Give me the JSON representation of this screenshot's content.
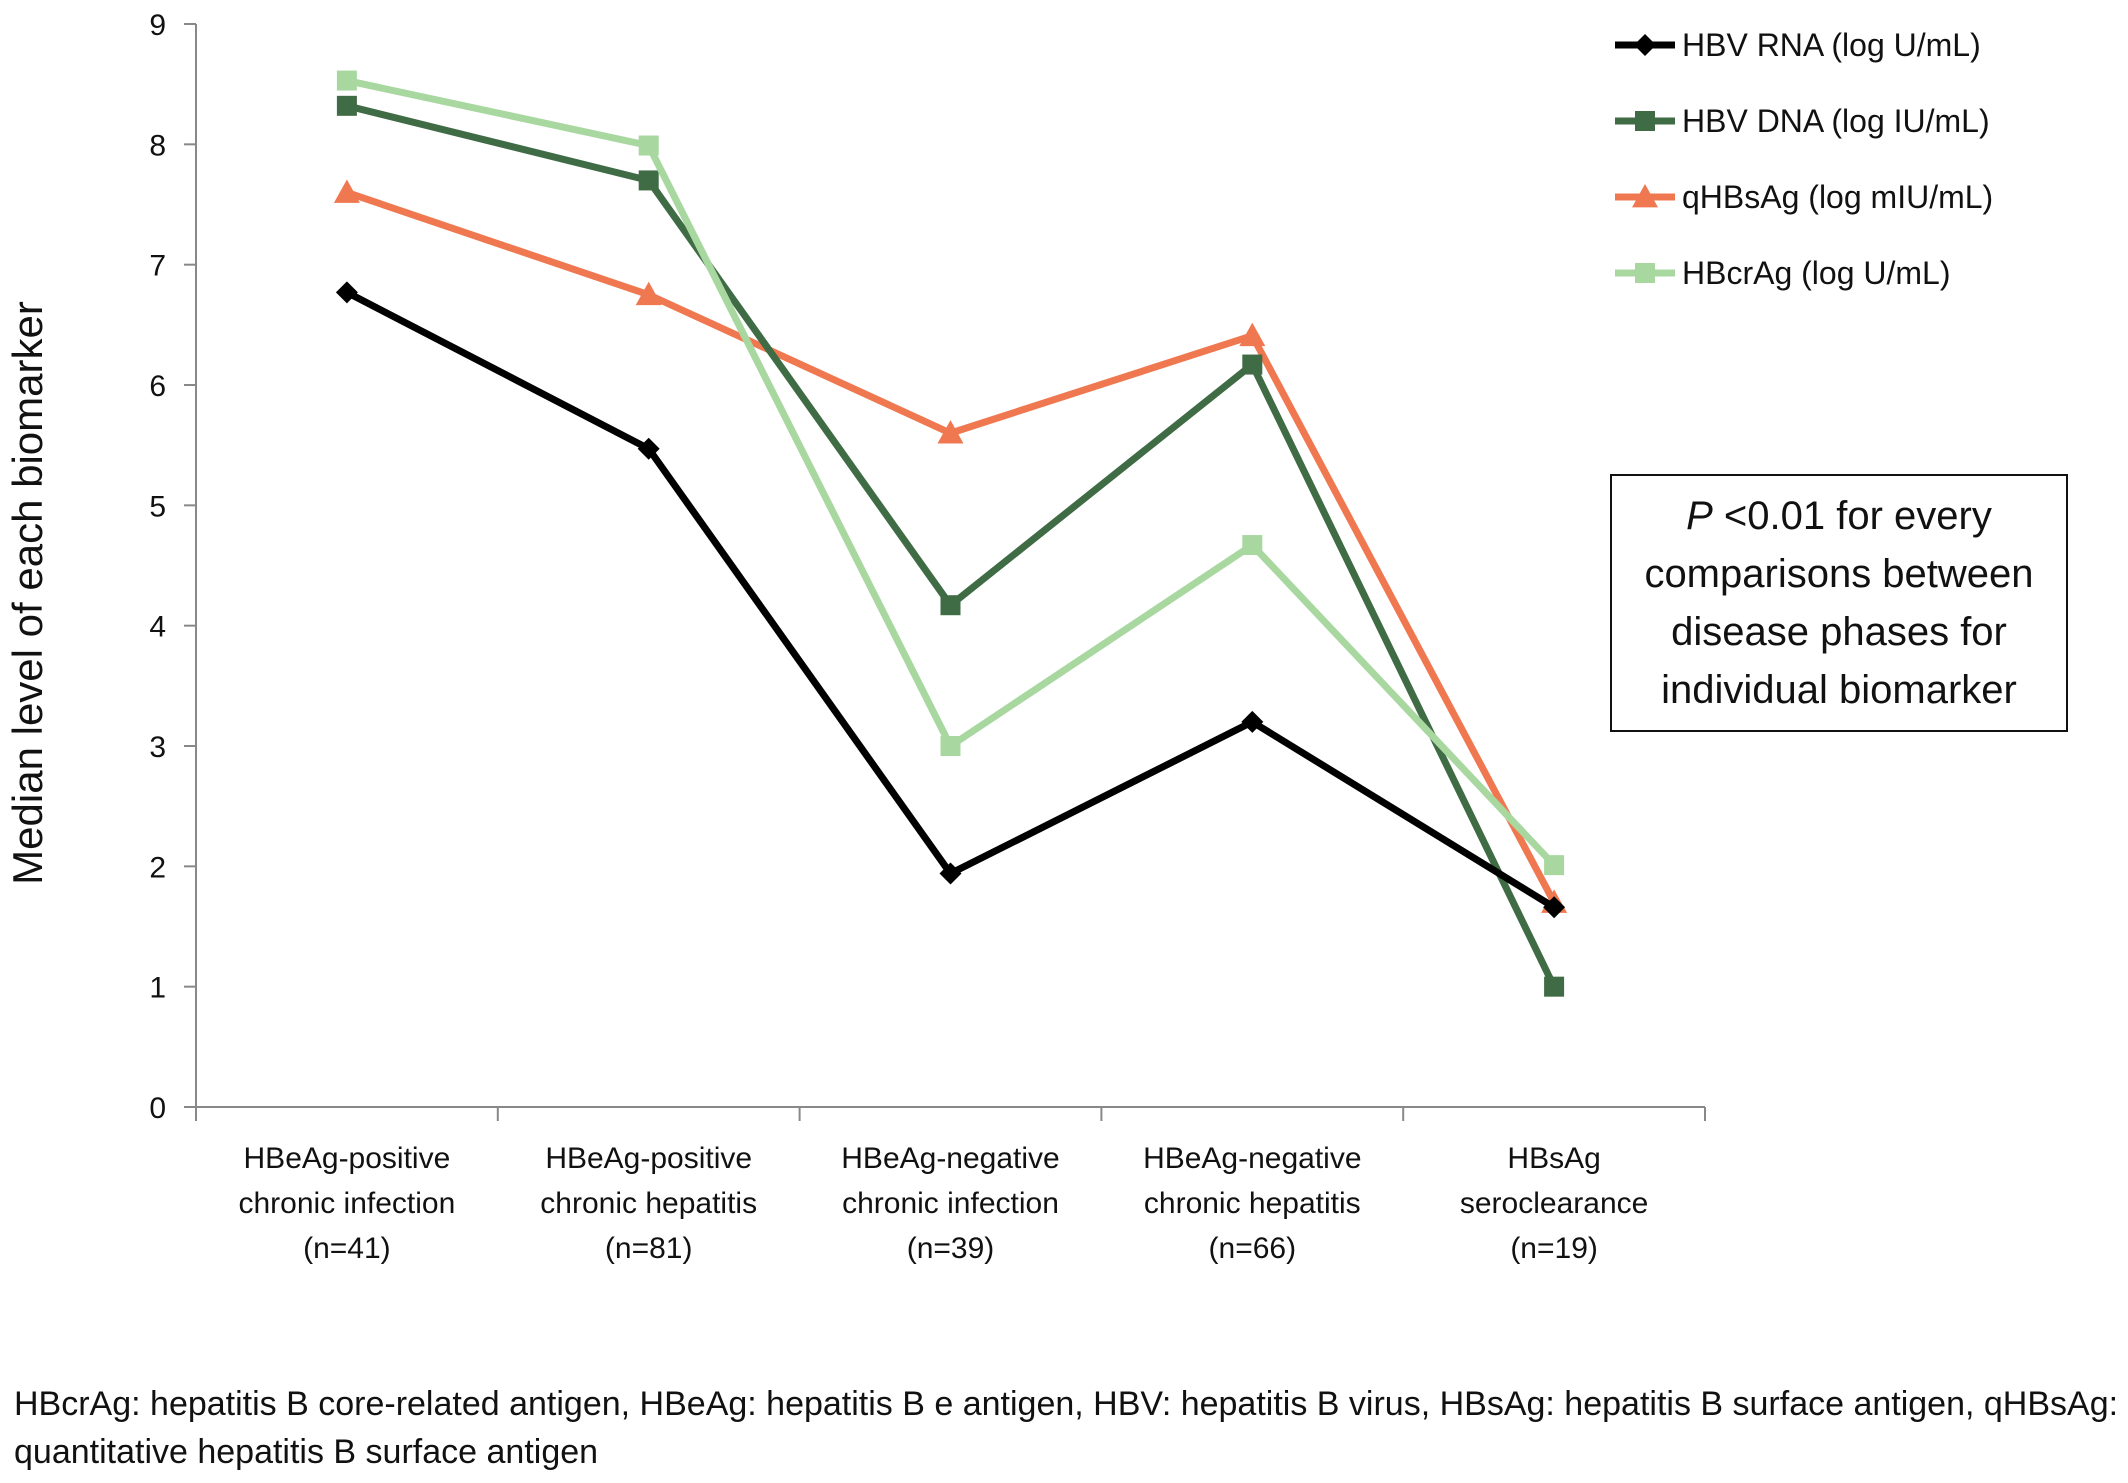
{
  "chart_data": {
    "type": "line",
    "title": "",
    "xlabel": "",
    "ylabel": "Median level of each biomarker",
    "ylim": [
      0,
      9
    ],
    "yticks": [
      "0",
      "1",
      "2",
      "3",
      "4",
      "5",
      "6",
      "7",
      "8",
      "9"
    ],
    "grid": false,
    "legend_position": "top-right",
    "categories": [
      [
        "HBeAg-positive",
        "chronic infection",
        "(n=41)"
      ],
      [
        "HBeAg-positive",
        "chronic hepatitis",
        "(n=81)"
      ],
      [
        "HBeAg-negative",
        "chronic infection",
        "(n=39)"
      ],
      [
        "HBeAg-negative",
        "chronic hepatitis",
        "(n=66)"
      ],
      [
        "HBsAg",
        "seroclearance",
        "(n=19)"
      ]
    ],
    "series": [
      {
        "name": "HBV RNA (log U/mL)",
        "marker": "diamond",
        "color": "#000000",
        "values": [
          6.77,
          5.47,
          1.94,
          3.2,
          1.66
        ]
      },
      {
        "name": "HBV DNA (log IU/mL)",
        "marker": "square",
        "color": "#3f6b45",
        "values": [
          8.32,
          7.7,
          4.17,
          6.17,
          1.0
        ]
      },
      {
        "name": "qHBsAg (log mIU/mL)",
        "marker": "triangle",
        "color": "#f07850",
        "values": [
          7.6,
          6.75,
          5.6,
          6.41,
          1.7
        ]
      },
      {
        "name": "HBcrAg (log U/mL)",
        "marker": "square",
        "color": "#a8d8a0",
        "values": [
          8.53,
          7.99,
          3.0,
          4.67,
          2.01
        ]
      }
    ]
  },
  "annotation": {
    "p_symbol": "P",
    "lines": [
      "<0.01 for every",
      "comparisons between",
      "disease phases for",
      "individual biomarker"
    ]
  },
  "footnote": "HBcrAg: hepatitis B core-related antigen, HBeAg: hepatitis B e antigen, HBV: hepatitis B virus, HBsAg: hepatitis B surface antigen, qHBsAg: quantitative hepatitis B surface antigen"
}
